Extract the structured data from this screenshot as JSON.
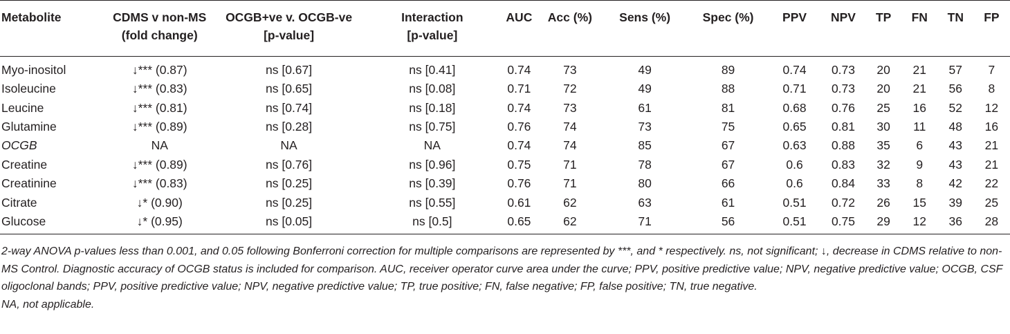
{
  "table": {
    "headers": [
      {
        "line1": "Metabolite",
        "line2": ""
      },
      {
        "line1": "CDMS v non-MS",
        "line2": "(fold change)"
      },
      {
        "line1": "OCGB+ve v. OCGB-ve",
        "line2": "[p-value]"
      },
      {
        "line1": "Interaction",
        "line2": "[p-value]"
      },
      {
        "line1": "AUC",
        "line2": ""
      },
      {
        "line1": "Acc (%)",
        "line2": ""
      },
      {
        "line1": "Sens (%)",
        "line2": ""
      },
      {
        "line1": "Spec (%)",
        "line2": ""
      },
      {
        "line1": "PPV",
        "line2": ""
      },
      {
        "line1": "NPV",
        "line2": ""
      },
      {
        "line1": "TP",
        "line2": ""
      },
      {
        "line1": "FN",
        "line2": ""
      },
      {
        "line1": "TN",
        "line2": ""
      },
      {
        "line1": "FP",
        "line2": ""
      }
    ],
    "rows": [
      {
        "italic": false,
        "cells": [
          "Myo-inositol",
          "↓*** (0.87)",
          "ns [0.67]",
          "ns [0.41]",
          "0.74",
          "73",
          "49",
          "89",
          "0.74",
          "0.73",
          "20",
          "21",
          "57",
          "7"
        ]
      },
      {
        "italic": false,
        "cells": [
          "Isoleucine",
          "↓*** (0.83)",
          "ns [0.65]",
          "ns [0.08]",
          "0.71",
          "72",
          "49",
          "88",
          "0.71",
          "0.73",
          "20",
          "21",
          "56",
          "8"
        ]
      },
      {
        "italic": false,
        "cells": [
          "Leucine",
          "↓*** (0.81)",
          "ns [0.74]",
          "ns [0.18]",
          "0.74",
          "73",
          "61",
          "81",
          "0.68",
          "0.76",
          "25",
          "16",
          "52",
          "12"
        ]
      },
      {
        "italic": false,
        "cells": [
          "Glutamine",
          "↓*** (0.89)",
          "ns [0.28]",
          "ns [0.75]",
          "0.76",
          "74",
          "73",
          "75",
          "0.65",
          "0.81",
          "30",
          "11",
          "48",
          "16"
        ]
      },
      {
        "italic": true,
        "cells": [
          "OCGB",
          "NA",
          "NA",
          "NA",
          "0.74",
          "74",
          "85",
          "67",
          "0.63",
          "0.88",
          "35",
          "6",
          "43",
          "21"
        ]
      },
      {
        "italic": false,
        "cells": [
          "Creatine",
          "↓*** (0.89)",
          "ns [0.76]",
          "ns [0.96]",
          "0.75",
          "71",
          "78",
          "67",
          "0.6",
          "0.83",
          "32",
          "9",
          "43",
          "21"
        ]
      },
      {
        "italic": false,
        "cells": [
          "Creatinine",
          "↓*** (0.83)",
          "ns [0.25]",
          "ns [0.39]",
          "0.76",
          "71",
          "80",
          "66",
          "0.6",
          "0.84",
          "33",
          "8",
          "42",
          "22"
        ]
      },
      {
        "italic": false,
        "cells": [
          "Citrate",
          "↓* (0.90)",
          "ns [0.25]",
          "ns [0.55]",
          "0.61",
          "62",
          "63",
          "61",
          "0.51",
          "0.72",
          "26",
          "15",
          "39",
          "25"
        ]
      },
      {
        "italic": false,
        "cells": [
          "Glucose",
          "↓* (0.95)",
          "ns [0.05]",
          "ns [0.5]",
          "0.65",
          "62",
          "71",
          "56",
          "0.51",
          "0.75",
          "29",
          "12",
          "36",
          "28"
        ]
      }
    ]
  },
  "notes": {
    "footnote": "2-way ANOVA p-values less than 0.001, and 0.05 following Bonferroni correction for multiple comparisons are represented by ***, and * respectively. ns, not significant; ↓, decrease in CDMS relative to non-MS Control. Diagnostic accuracy of OCGB status is included for comparison. AUC, receiver operator curve area under the curve; PPV, positive predictive value; NPV, negative predictive value; OCGB, CSF oligoclonal bands; PPV, positive predictive value; NPV, negative predictive value; TP, true positive; FN, false negative; FP, false positive; TN, true negative.",
    "na_note": "NA, not applicable."
  }
}
